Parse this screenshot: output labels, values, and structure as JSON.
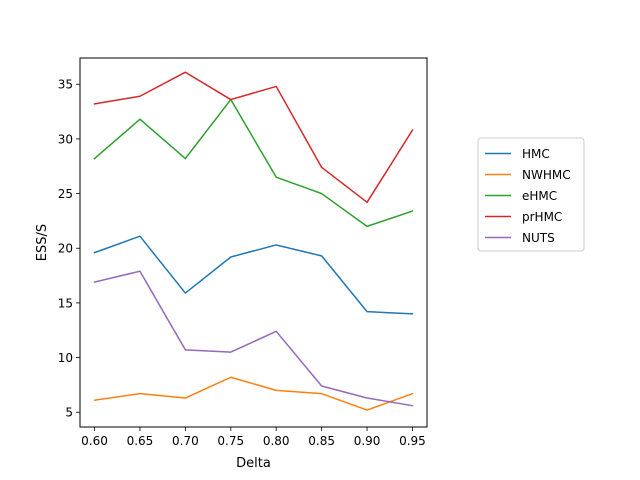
{
  "chart_data": {
    "type": "line",
    "title": "",
    "xlabel": "Delta",
    "ylabel": "ESS/S",
    "x": [
      0.6,
      0.65,
      0.7,
      0.75,
      0.8,
      0.85,
      0.9,
      0.95
    ],
    "xticks": [
      "0.60",
      "0.65",
      "0.70",
      "0.75",
      "0.80",
      "0.85",
      "0.90",
      "0.95"
    ],
    "yticks": [
      "5",
      "10",
      "15",
      "20",
      "25",
      "30",
      "35"
    ],
    "xlim": [
      0.584,
      0.966
    ],
    "ylim": [
      3.65,
      37.4
    ],
    "grid": false,
    "legend_position": "right",
    "series": [
      {
        "name": "HMC",
        "color": "#1f77b4",
        "values": [
          19.6,
          21.1,
          15.9,
          19.2,
          20.3,
          19.3,
          14.2,
          14.0
        ]
      },
      {
        "name": "NWHMC",
        "color": "#ff7f0e",
        "values": [
          6.1,
          6.7,
          6.3,
          8.2,
          7.0,
          6.7,
          5.2,
          6.7
        ]
      },
      {
        "name": "eHMC",
        "color": "#2ca02c",
        "values": [
          28.2,
          31.8,
          28.2,
          33.6,
          26.5,
          25.0,
          22.0,
          23.4
        ]
      },
      {
        "name": "prHMC",
        "color": "#d62728",
        "values": [
          33.2,
          33.9,
          36.1,
          33.6,
          34.8,
          27.4,
          24.2,
          30.8
        ]
      },
      {
        "name": "NUTS",
        "color": "#9467bd",
        "values": [
          16.9,
          17.9,
          10.7,
          10.5,
          12.4,
          7.4,
          6.3,
          5.6
        ]
      }
    ]
  }
}
